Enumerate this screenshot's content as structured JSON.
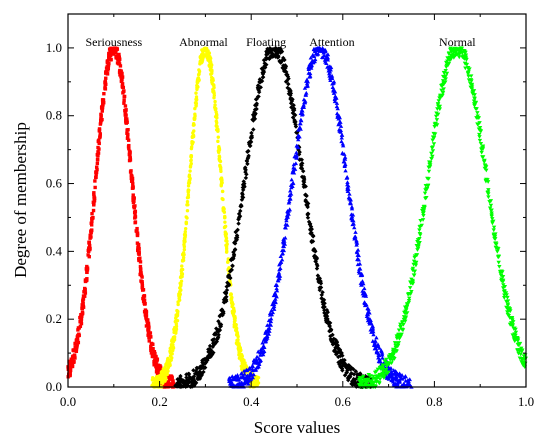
{
  "chart_data": {
    "type": "scatter",
    "title": "",
    "xlabel": "Score values",
    "ylabel": "Degree of membership",
    "xlim": [
      0.0,
      1.0
    ],
    "ylim": [
      0.0,
      1.1
    ],
    "xticks": [
      "0.0",
      "0.2",
      "0.4",
      "0.6",
      "0.8",
      "1.0"
    ],
    "yticks": [
      "0.0",
      "0.2",
      "0.4",
      "0.6",
      "0.8",
      "1.0"
    ],
    "grid": false,
    "curve_shape": "gaussian",
    "series": [
      {
        "name": "Seriousness",
        "center": 0.1,
        "sigma": 0.04,
        "peak": 1.0,
        "color": "#ff0000",
        "marker": "square"
      },
      {
        "name": "Abnormal",
        "center": 0.3,
        "sigma": 0.035,
        "peak": 1.0,
        "color": "#ffff00",
        "marker": "circle"
      },
      {
        "name": "Floating",
        "center": 0.45,
        "sigma": 0.065,
        "peak": 1.0,
        "color": "#000000",
        "marker": "diamond"
      },
      {
        "name": "Attention",
        "center": 0.55,
        "sigma": 0.06,
        "peak": 1.0,
        "color": "#0000ff",
        "marker": "triangle"
      },
      {
        "name": "Normal",
        "center": 0.85,
        "sigma": 0.065,
        "peak": 1.0,
        "color": "#00ff00",
        "marker": "triangle-down"
      }
    ]
  }
}
